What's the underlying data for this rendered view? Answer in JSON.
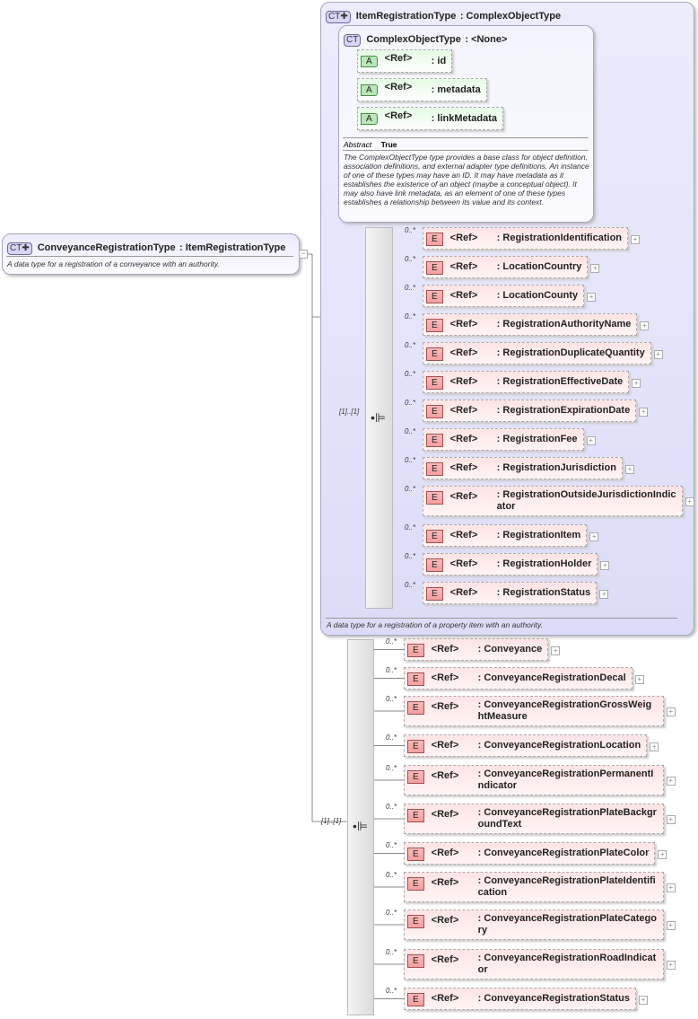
{
  "conveyance_type": {
    "badge": "CT",
    "name": "ConveyanceRegistrationType",
    "base": ": ItemRegistrationType",
    "description": "A data type for a registration of a conveyance with an authority."
  },
  "item_type": {
    "badge": "CT",
    "name": "ItemRegistrationType",
    "base": ": ComplexObjectType",
    "description": "A data type for a registration of a property item with an authority.",
    "sequence_cardinality": "[1]..[1]"
  },
  "complex_object_type": {
    "badge": "CT",
    "name": "ComplexObjectType",
    "base": ": <None>",
    "abstract_label": "Abstract",
    "abstract_value": "True",
    "description": "The ComplexObjectType type provides a base class for object definition, association definitions, and external adapter type definitions. An instance of one of these types may have an ID. It may have metadata as it establishes the existence of an object (maybe a conceptual object). It may also have link metadata, as an element of one of these types establishes a relationship between its value and its context.",
    "attributes": [
      {
        "badge": "A",
        "ref": "<Ref>",
        "name": ": id"
      },
      {
        "badge": "A",
        "ref": "<Ref>",
        "name": ": metadata"
      },
      {
        "badge": "A",
        "ref": "<Ref>",
        "name": ": linkMetadata"
      }
    ]
  },
  "item_elements": [
    {
      "card": "0..*",
      "ref": "<Ref>",
      "name": ": RegistrationIdentification"
    },
    {
      "card": "0..*",
      "ref": "<Ref>",
      "name": ": LocationCountry"
    },
    {
      "card": "0..*",
      "ref": "<Ref>",
      "name": ": LocationCounty"
    },
    {
      "card": "0..*",
      "ref": "<Ref>",
      "name": ": RegistrationAuthorityName"
    },
    {
      "card": "0..*",
      "ref": "<Ref>",
      "name": ": RegistrationDuplicateQuantity"
    },
    {
      "card": "0..*",
      "ref": "<Ref>",
      "name": ": RegistrationEffectiveDate"
    },
    {
      "card": "0..*",
      "ref": "<Ref>",
      "name": ": RegistrationExpirationDate"
    },
    {
      "card": "0..*",
      "ref": "<Ref>",
      "name": ": RegistrationFee"
    },
    {
      "card": "0..*",
      "ref": "<Ref>",
      "name": ": RegistrationJurisdiction"
    },
    {
      "card": "0..*",
      "ref": "<Ref>",
      "name": ": RegistrationOutsideJurisdictionIndicator"
    },
    {
      "card": "0..*",
      "ref": "<Ref>",
      "name": ": RegistrationItem"
    },
    {
      "card": "0..*",
      "ref": "<Ref>",
      "name": ": RegistrationHolder"
    },
    {
      "card": "0..*",
      "ref": "<Ref>",
      "name": ": RegistrationStatus"
    }
  ],
  "conveyance_sequence_cardinality": "[1]..[1]",
  "conveyance_elements": [
    {
      "card": "0..*",
      "ref": "<Ref>",
      "name": ": Conveyance"
    },
    {
      "card": "0..*",
      "ref": "<Ref>",
      "name": ": ConveyanceRegistrationDecal"
    },
    {
      "card": "0..*",
      "ref": "<Ref>",
      "name": ": ConveyanceRegistrationGrossWeightMeasure"
    },
    {
      "card": "0..*",
      "ref": "<Ref>",
      "name": ": ConveyanceRegistrationLocation"
    },
    {
      "card": "0..*",
      "ref": "<Ref>",
      "name": ": ConveyanceRegistrationPermanentIndicator"
    },
    {
      "card": "0..*",
      "ref": "<Ref>",
      "name": ": ConveyanceRegistrationPlateBackgroundText"
    },
    {
      "card": "0..*",
      "ref": "<Ref>",
      "name": ": ConveyanceRegistrationPlateColor"
    },
    {
      "card": "0..*",
      "ref": "<Ref>",
      "name": ": ConveyanceRegistrationPlateIdentification"
    },
    {
      "card": "0..*",
      "ref": "<Ref>",
      "name": ": ConveyanceRegistrationPlateCategory"
    },
    {
      "card": "0..*",
      "ref": "<Ref>",
      "name": ": ConveyanceRegistrationRoadIndicator"
    },
    {
      "card": "0..*",
      "ref": "<Ref>",
      "name": ": ConveyanceRegistrationStatus"
    }
  ],
  "colors": {
    "complex_type_bg": "#e4e4fb",
    "element_bg": "#ffe4e4",
    "attribute_bg": "#e4fbe4"
  }
}
